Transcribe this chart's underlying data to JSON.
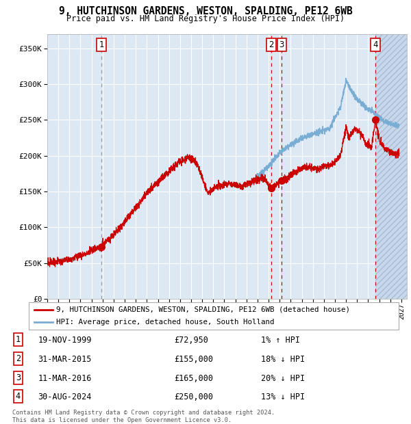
{
  "title": "9, HUTCHINSON GARDENS, WESTON, SPALDING, PE12 6WB",
  "subtitle": "Price paid vs. HM Land Registry's House Price Index (HPI)",
  "xlim_start": 1995.0,
  "xlim_end": 2027.5,
  "ylim": [
    0,
    370000
  ],
  "yticks": [
    0,
    50000,
    100000,
    150000,
    200000,
    250000,
    300000,
    350000
  ],
  "ytick_labels": [
    "£0",
    "£50K",
    "£100K",
    "£150K",
    "£200K",
    "£250K",
    "£300K",
    "£350K"
  ],
  "bg_color": "#dce9f5",
  "hatch_color": "#c8d8ec",
  "grid_color": "#ffffff",
  "red_line_color": "#cc0000",
  "blue_line_color": "#7aadd4",
  "sale_marker_color": "#cc0000",
  "vline_grey_color": "#999999",
  "vline_red_color": "#cc0000",
  "sale_events": [
    {
      "label": "1",
      "date_x": 1999.89,
      "price": 72950,
      "vline_style": "grey"
    },
    {
      "label": "2",
      "date_x": 2015.25,
      "price": 155000,
      "vline_style": "red"
    },
    {
      "label": "3",
      "date_x": 2016.19,
      "price": 165000,
      "vline_style": "red"
    },
    {
      "label": "4",
      "date_x": 2024.66,
      "price": 250000,
      "vline_style": "red"
    }
  ],
  "table_rows": [
    {
      "num": "1",
      "date": "19-NOV-1999",
      "price": "£72,950",
      "hpi": "1% ↑ HPI"
    },
    {
      "num": "2",
      "date": "31-MAR-2015",
      "price": "£155,000",
      "hpi": "18% ↓ HPI"
    },
    {
      "num": "3",
      "date": "11-MAR-2016",
      "price": "£165,000",
      "hpi": "20% ↓ HPI"
    },
    {
      "num": "4",
      "date": "30-AUG-2024",
      "price": "£250,000",
      "hpi": "13% ↓ HPI"
    }
  ],
  "legend_entries": [
    {
      "label": "9, HUTCHINSON GARDENS, WESTON, SPALDING, PE12 6WB (detached house)",
      "color": "#cc0000"
    },
    {
      "label": "HPI: Average price, detached house, South Holland",
      "color": "#7aadd4"
    }
  ],
  "footer": "Contains HM Land Registry data © Crown copyright and database right 2024.\nThis data is licensed under the Open Government Licence v3.0.",
  "hatch_start": 2024.66,
  "hatch_end": 2027.5
}
